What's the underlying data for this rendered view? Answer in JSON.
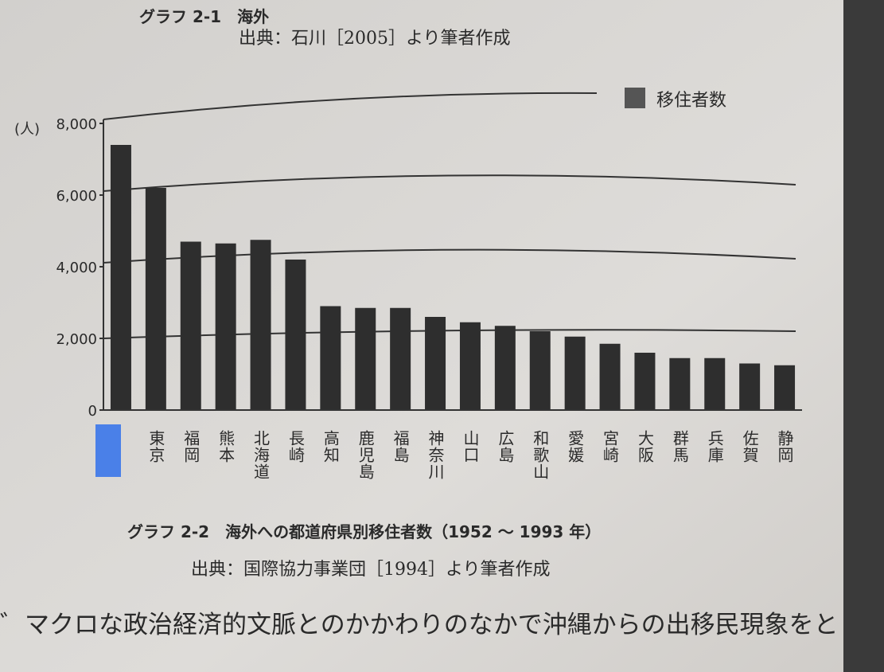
{
  "top_caption": "グラフ 2-1　海外",
  "top_source": "出典：石川［2005］より筆者作成",
  "chart_data": {
    "type": "bar",
    "y_unit": "(人)",
    "legend": "移住者数",
    "color": "#2e2e2e",
    "categories": [
      null,
      "東京",
      "福岡",
      "熊本",
      "北海道",
      "長崎",
      "高知",
      "鹿児島",
      "福島",
      "神奈川",
      "山口",
      "広島",
      "和歌山",
      "愛媛",
      "宮崎",
      "大阪",
      "群馬",
      "兵庫",
      "佐賀",
      "静岡"
    ],
    "values": [
      7400,
      6200,
      4700,
      4650,
      4750,
      4200,
      2900,
      2850,
      2850,
      2600,
      2450,
      2350,
      2200,
      2050,
      1850,
      1600,
      1450,
      1450,
      1300,
      1250
    ],
    "ylim": [
      0,
      8000
    ],
    "yticks": [
      0,
      {
        "value": 2000,
        "label": "2,000"
      },
      {
        "value": 4000,
        "label": "4,000"
      },
      {
        "value": 6000,
        "label": "6,000"
      },
      {
        "value": 8000,
        "label": "8,000"
      }
    ],
    "caption": "グラフ 2-2　海外への都道府県別移住者数（1952 ～ 1993 年）",
    "source": "出典：国際協力事業団［1994］より筆者作成"
  },
  "body_text": "゛マクロな政治経済的文脈とのかかわりのなかで沖縄からの出移民現象をと"
}
